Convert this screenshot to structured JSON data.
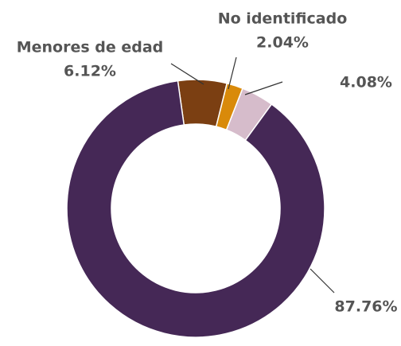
{
  "chart_data": {
    "type": "donut",
    "categories": [
      "Menores de edad",
      "No identificado",
      null,
      null
    ],
    "values": [
      6.12,
      2.04,
      4.08,
      87.76
    ],
    "value_labels": [
      "6.12%",
      "2.04%",
      "4.08%",
      "87.76%"
    ],
    "colors": [
      "#7b3f12",
      "#d98a0a",
      "#d6bccb",
      "#452856"
    ]
  }
}
